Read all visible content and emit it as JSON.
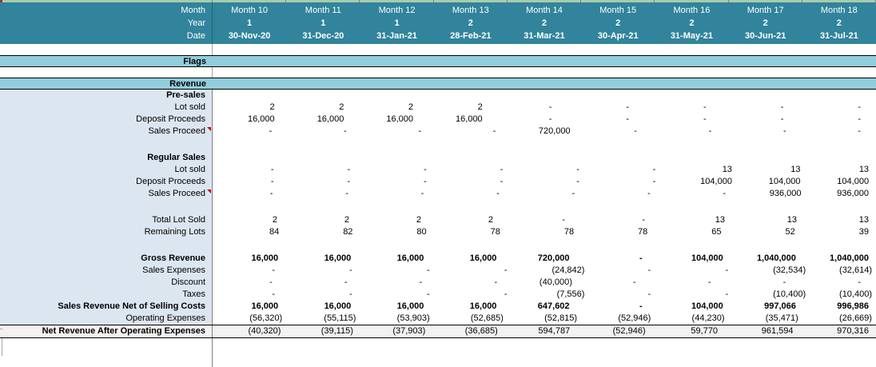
{
  "colors": {
    "header_bg": "#31849B",
    "band_bg": "#92CDDC",
    "label_column_bg": "#DCE6F1",
    "total_row_bg": "#F2F2F2",
    "top_strip": "#A8CCAD",
    "comment_marker": "#C00000"
  },
  "header": {
    "field_labels": [
      "Month",
      "Year",
      "Date"
    ],
    "columns": [
      {
        "month": "Month 10",
        "year": "1",
        "date": "30-Nov-20"
      },
      {
        "month": "Month 11",
        "year": "1",
        "date": "31-Dec-20"
      },
      {
        "month": "Month 12",
        "year": "1",
        "date": "31-Jan-21"
      },
      {
        "month": "Month 13",
        "year": "2",
        "date": "28-Feb-21"
      },
      {
        "month": "Month 14",
        "year": "2",
        "date": "31-Mar-21"
      },
      {
        "month": "Month 15",
        "year": "2",
        "date": "30-Apr-21"
      },
      {
        "month": "Month 16",
        "year": "2",
        "date": "31-May-21"
      },
      {
        "month": "Month 17",
        "year": "2",
        "date": "30-Jun-21"
      },
      {
        "month": "Month 18",
        "year": "2",
        "date": "31-Jul-21"
      }
    ]
  },
  "bands": {
    "flags": "Flags",
    "revenue": "Revenue"
  },
  "rows": [
    {
      "label": "Pre-sales",
      "type": "subheader",
      "values": [
        "",
        "",
        "",
        "",
        "",
        "",
        "",
        "",
        ""
      ]
    },
    {
      "label": "Lot sold",
      "type": "normal",
      "values": [
        "2",
        "2",
        "2",
        "2",
        "-",
        "-",
        "-",
        "-",
        "-"
      ]
    },
    {
      "label": "Deposit Proceeds",
      "type": "normal",
      "values": [
        "16,000",
        "16,000",
        "16,000",
        "16,000",
        "-",
        "-",
        "-",
        "-",
        "-"
      ]
    },
    {
      "label": "Sales Proceed",
      "type": "normal",
      "note": true,
      "values": [
        "-",
        "-",
        "-",
        "-",
        "720,000",
        "-",
        "-",
        "-",
        "-"
      ]
    },
    {
      "label": "",
      "type": "blank",
      "values": [
        "",
        "",
        "",
        "",
        "",
        "",
        "",
        "",
        ""
      ]
    },
    {
      "label": "Regular Sales",
      "type": "subheader",
      "values": [
        "",
        "",
        "",
        "",
        "",
        "",
        "",
        "",
        ""
      ]
    },
    {
      "label": "Lot sold",
      "type": "normal",
      "values": [
        "-",
        "-",
        "-",
        "-",
        "-",
        "-",
        "13",
        "13",
        "13"
      ]
    },
    {
      "label": "Deposit Proceeds",
      "type": "normal",
      "values": [
        "-",
        "-",
        "-",
        "-",
        "-",
        "-",
        "104,000",
        "104,000",
        "104,000"
      ]
    },
    {
      "label": "Sales Proceed",
      "type": "normal",
      "note": true,
      "values": [
        "-",
        "-",
        "-",
        "-",
        "-",
        "-",
        "-",
        "936,000",
        "936,000"
      ]
    },
    {
      "label": "",
      "type": "blank",
      "values": [
        "",
        "",
        "",
        "",
        "",
        "",
        "",
        "",
        ""
      ]
    },
    {
      "label": "Total Lot Sold",
      "type": "normal",
      "values": [
        "2",
        "2",
        "2",
        "2",
        "-",
        "-",
        "13",
        "13",
        "13"
      ]
    },
    {
      "label": "Remaining Lots",
      "type": "normal",
      "values": [
        "84",
        "82",
        "80",
        "78",
        "78",
        "78",
        "65",
        "52",
        "39"
      ]
    },
    {
      "label": "",
      "type": "blank",
      "values": [
        "",
        "",
        "",
        "",
        "",
        "",
        "",
        "",
        ""
      ]
    },
    {
      "label": "Gross Revenue",
      "type": "bold",
      "values": [
        "16,000",
        "16,000",
        "16,000",
        "16,000",
        "720,000",
        "-",
        "104,000",
        "1,040,000",
        "1,040,000"
      ]
    },
    {
      "label": "Sales Expenses",
      "type": "normal",
      "values": [
        "-",
        "-",
        "-",
        "-",
        "(24,842)",
        "-",
        "-",
        "(32,534)",
        "(32,614)"
      ]
    },
    {
      "label": "Discount",
      "type": "normal",
      "values": [
        "-",
        "-",
        "-",
        "-",
        "(40,000)",
        "-",
        "-",
        "-",
        "-"
      ]
    },
    {
      "label": "Taxes",
      "type": "normal",
      "values": [
        "-",
        "-",
        "-",
        "-",
        "(7,556)",
        "-",
        "-",
        "(10,400)",
        "(10,400)"
      ]
    },
    {
      "label": "Sales Revenue Net of Selling Costs",
      "type": "bold",
      "values": [
        "16,000",
        "16,000",
        "16,000",
        "16,000",
        "647,602",
        "-",
        "104,000",
        "997,066",
        "996,986"
      ]
    },
    {
      "label": "Operating Expenses",
      "type": "normal",
      "values": [
        "(56,320)",
        "(55,115)",
        "(53,903)",
        "(52,685)",
        "(52,815)",
        "(52,946)",
        "(44,230)",
        "(35,471)",
        "(26,669)"
      ]
    },
    {
      "label": "Net Revenue After Operating Expenses",
      "type": "total",
      "values": [
        "(40,320)",
        "(39,115)",
        "(37,903)",
        "(36,685)",
        "594,787",
        "(52,946)",
        "59,770",
        "961,594",
        "970,316"
      ]
    }
  ]
}
